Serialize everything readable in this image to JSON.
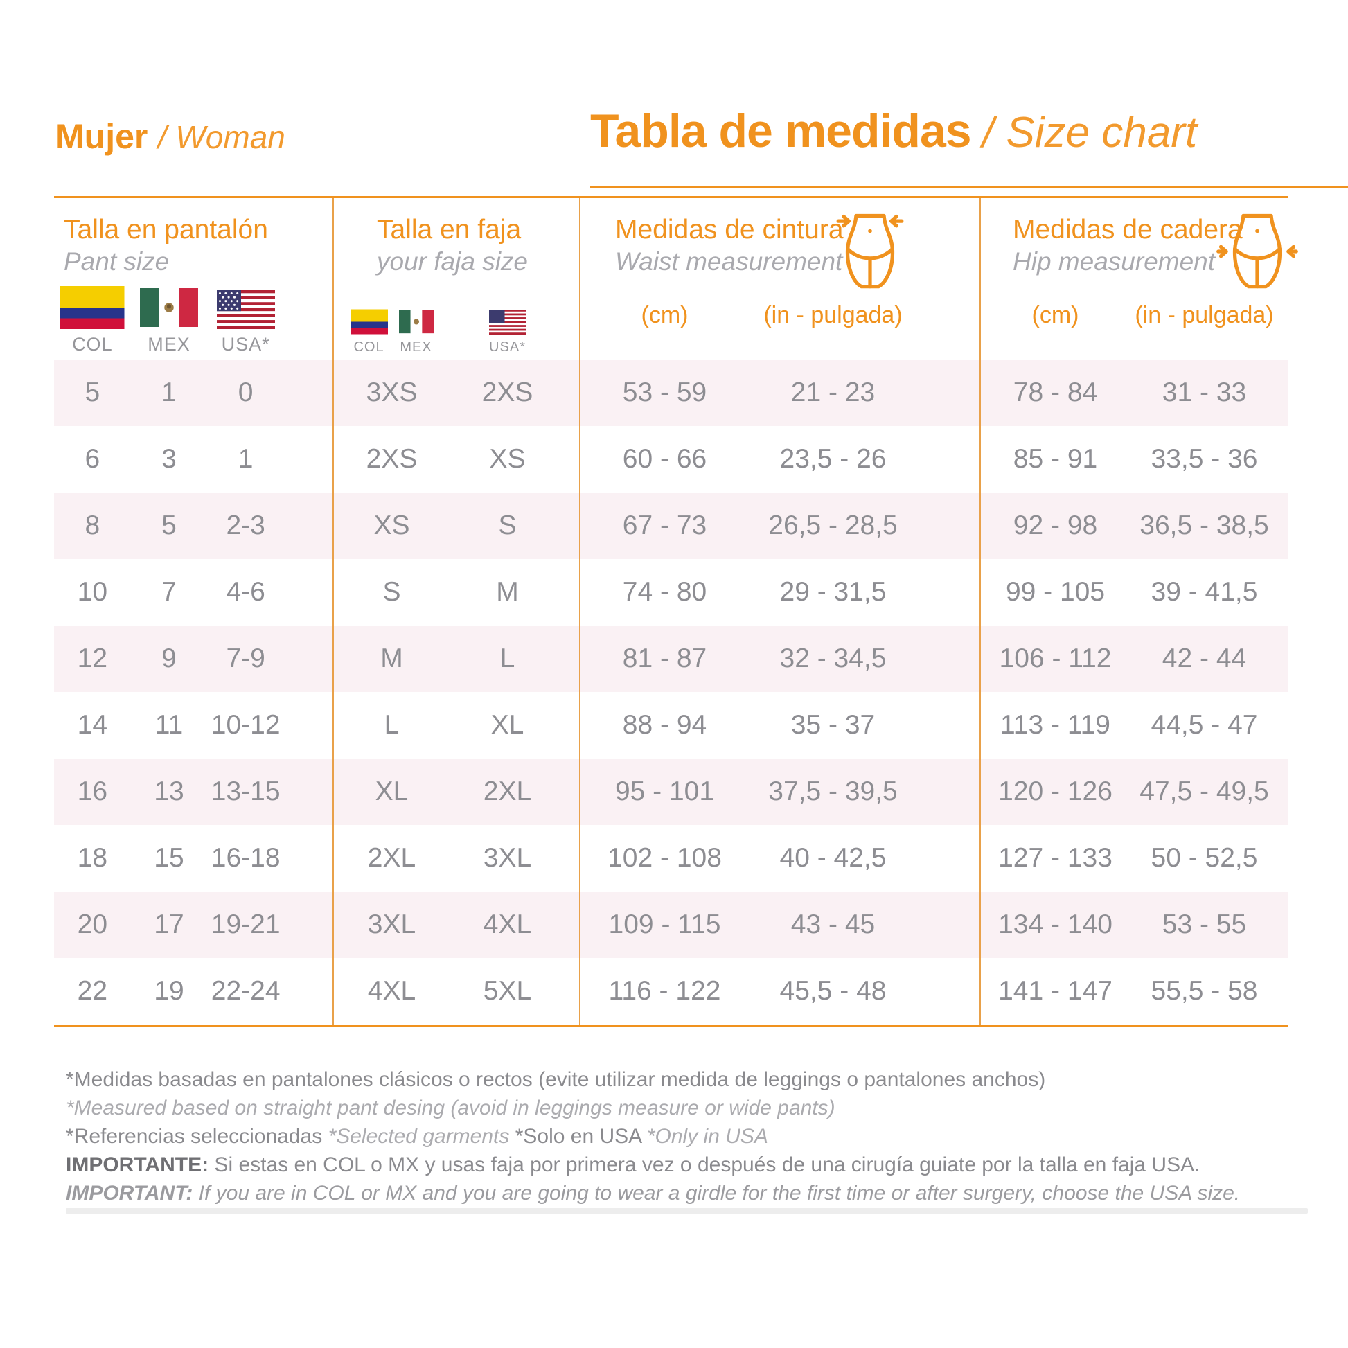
{
  "header": {
    "left_bold": "Mujer",
    "left_italic": "/ Woman",
    "right_bold": "Tabla de medidas",
    "right_italic": "/ Size chart"
  },
  "colors": {
    "accent_orange": "#F0921E",
    "row_stripe_pink": "#FAF1F4",
    "cell_text_gray": "#8D8D92"
  },
  "columns": {
    "pant": {
      "title_es": "Talla en pantalón",
      "title_en": "Pant size",
      "flag_labels": {
        "col": "COL",
        "mex": "MEX",
        "usa": "USA*"
      }
    },
    "faja": {
      "title_es": "Talla en faja",
      "title_en": "your faja size",
      "flag_labels": {
        "col": "COL",
        "mex": "MEX",
        "usa": "USA*"
      }
    },
    "waist": {
      "title_es": "Medidas de cintura",
      "title_en": "Waist  measurement",
      "unit_cm": "(cm)",
      "unit_in": "(in - pulgada)"
    },
    "hip": {
      "title_es": "Medidas de cadera",
      "title_en": "Hip  measurement",
      "unit_cm": "(cm)",
      "unit_in": "(in - pulgada)"
    }
  },
  "rows": [
    {
      "pant_col": "5",
      "pant_mex": "1",
      "pant_usa": "0",
      "faja_colmex": "3XS",
      "faja_usa": "2XS",
      "waist_cm": "53 - 59",
      "waist_in": "21 - 23",
      "hip_cm": "78 - 84",
      "hip_in": "31 - 33"
    },
    {
      "pant_col": "6",
      "pant_mex": "3",
      "pant_usa": "1",
      "faja_colmex": "2XS",
      "faja_usa": "XS",
      "waist_cm": "60 - 66",
      "waist_in": "23,5 - 26",
      "hip_cm": "85 - 91",
      "hip_in": "33,5 - 36"
    },
    {
      "pant_col": "8",
      "pant_mex": "5",
      "pant_usa": "2-3",
      "faja_colmex": "XS",
      "faja_usa": "S",
      "waist_cm": "67 - 73",
      "waist_in": "26,5 - 28,5",
      "hip_cm": "92 - 98",
      "hip_in": "36,5 - 38,5"
    },
    {
      "pant_col": "10",
      "pant_mex": "7",
      "pant_usa": "4-6",
      "faja_colmex": "S",
      "faja_usa": "M",
      "waist_cm": "74 - 80",
      "waist_in": "29 - 31,5",
      "hip_cm": "99 - 105",
      "hip_in": "39 - 41,5"
    },
    {
      "pant_col": "12",
      "pant_mex": "9",
      "pant_usa": "7-9",
      "faja_colmex": "M",
      "faja_usa": "L",
      "waist_cm": "81 - 87",
      "waist_in": "32 - 34,5",
      "hip_cm": "106 - 112",
      "hip_in": "42 - 44"
    },
    {
      "pant_col": "14",
      "pant_mex": "11",
      "pant_usa": "10-12",
      "faja_colmex": "L",
      "faja_usa": "XL",
      "waist_cm": "88 - 94",
      "waist_in": "35 - 37",
      "hip_cm": "113 - 119",
      "hip_in": "44,5 - 47"
    },
    {
      "pant_col": "16",
      "pant_mex": "13",
      "pant_usa": "13-15",
      "faja_colmex": "XL",
      "faja_usa": "2XL",
      "waist_cm": "95 - 101",
      "waist_in": "37,5 - 39,5",
      "hip_cm": "120 - 126",
      "hip_in": "47,5 - 49,5"
    },
    {
      "pant_col": "18",
      "pant_mex": "15",
      "pant_usa": "16-18",
      "faja_colmex": "2XL",
      "faja_usa": "3XL",
      "waist_cm": "102 - 108",
      "waist_in": "40 - 42,5",
      "hip_cm": "127 - 133",
      "hip_in": "50 - 52,5"
    },
    {
      "pant_col": "20",
      "pant_mex": "17",
      "pant_usa": "19-21",
      "faja_colmex": "3XL",
      "faja_usa": "4XL",
      "waist_cm": "109 - 115",
      "waist_in": "43 - 45",
      "hip_cm": "134 - 140",
      "hip_in": "53 - 55"
    },
    {
      "pant_col": "22",
      "pant_mex": "19",
      "pant_usa": "22-24",
      "faja_colmex": "4XL",
      "faja_usa": "5XL",
      "waist_cm": "116 - 122",
      "waist_in": "45,5 - 48",
      "hip_cm": "141 - 147",
      "hip_in": "55,5 - 58"
    }
  ],
  "footnotes": {
    "line1": "*Medidas basadas en pantalones clásicos o rectos (evite utilizar medida de leggings o pantalones anchos)",
    "line2": "*Measured based on straight pant desing (avoid in leggings measure or wide pants)",
    "line3_a": "*Referencias seleccionadas",
    "line3_b": "*Selected garments",
    "line3_c": "*Solo en USA",
    "line3_d": "*Only in USA",
    "important_es_label": "IMPORTANTE:",
    "important_es_text": " Si estas en COL o MX y usas faja por primera vez o después de una cirugía guiate por la talla en faja USA.",
    "important_en_label": "IMPORTANT:",
    "important_en_text": " If you are in COL or MX and you are going to wear a girdle for the first time or after surgery, choose the USA size."
  }
}
